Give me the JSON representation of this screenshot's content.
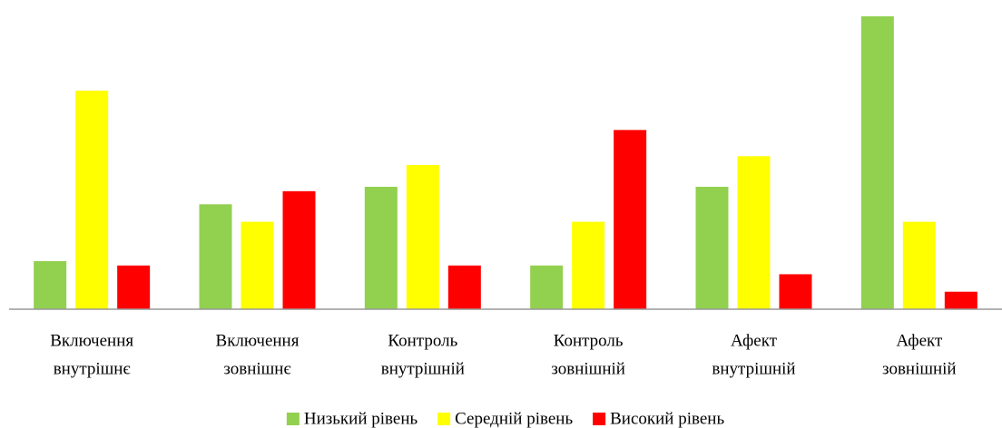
{
  "chart_data": {
    "type": "bar",
    "categories": [
      [
        "Включення",
        "внутрішнє"
      ],
      [
        "Включення",
        "зовнішнє"
      ],
      [
        "Контроль",
        "внутрішній"
      ],
      [
        "Контроль",
        "зовнішній"
      ],
      [
        "Афект",
        "внутрішній"
      ],
      [
        "Афект",
        "зовнішній"
      ]
    ],
    "series": [
      {
        "name": "Низький рівень",
        "color": "#92d050",
        "values": [
          5.5,
          12,
          14,
          5,
          14,
          33.5
        ]
      },
      {
        "name": "Середній рівень",
        "color": "#ffff00",
        "values": [
          25,
          10,
          16.5,
          10,
          17.5,
          10
        ]
      },
      {
        "name": "Високий рівень",
        "color": "#ff0000",
        "values": [
          5,
          13.5,
          5,
          20.5,
          4,
          2
        ]
      }
    ],
    "ylim": [
      0,
      33.5
    ],
    "legend": "bottom"
  }
}
